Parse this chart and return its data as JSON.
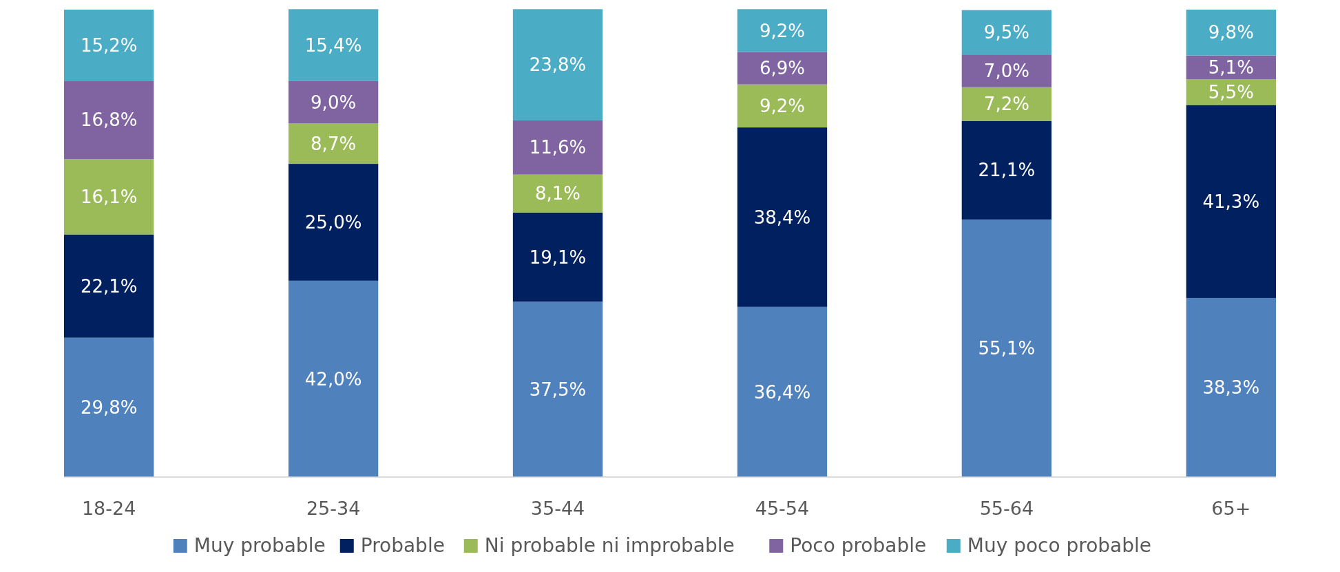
{
  "chart_data": {
    "type": "bar",
    "stacked": true,
    "categories": [
      "18-24",
      "25-34",
      "35-44",
      "45-54",
      "55-64",
      "65+"
    ],
    "ylim": [
      0,
      100
    ],
    "tick_labels": "x",
    "grid": false,
    "legend": "bottom",
    "series": [
      {
        "name": "Muy probable",
        "color": "#4f81bd",
        "values": [
          29.8,
          42.0,
          37.5,
          36.4,
          55.1,
          38.3
        ],
        "value_labels": [
          "29,8%",
          "42,0%",
          "37,5%",
          "36,4%",
          "55,1%",
          "38,3%"
        ]
      },
      {
        "name": "Probable",
        "color": "#002060",
        "values": [
          22.1,
          25.0,
          19.1,
          38.4,
          21.1,
          41.3
        ],
        "value_labels": [
          "22,1%",
          "25,0%",
          "19,1%",
          "38,4%",
          "21,1%",
          "41,3%"
        ]
      },
      {
        "name": "Ni probable ni improbable",
        "color": "#9bbb59",
        "values": [
          16.1,
          8.7,
          8.1,
          9.2,
          7.2,
          5.5
        ],
        "value_labels": [
          "16,1%",
          "8,7%",
          "8,1%",
          "9,2%",
          "7,2%",
          "5,5%"
        ]
      },
      {
        "name": "Poco probable",
        "color": "#8064a2",
        "values": [
          16.8,
          9.0,
          11.6,
          6.9,
          7.0,
          5.1
        ],
        "value_labels": [
          "16,8%",
          "9,0%",
          "11,6%",
          "6,9%",
          "7,0%",
          "5,1%"
        ]
      },
      {
        "name": "Muy poco probable",
        "color": "#4bacc6",
        "values": [
          15.2,
          15.4,
          23.8,
          9.2,
          9.5,
          9.8
        ],
        "value_labels": [
          "15,2%",
          "15,4%",
          "23,8%",
          "9,2%",
          "9,5%",
          "9,8%"
        ]
      }
    ]
  }
}
